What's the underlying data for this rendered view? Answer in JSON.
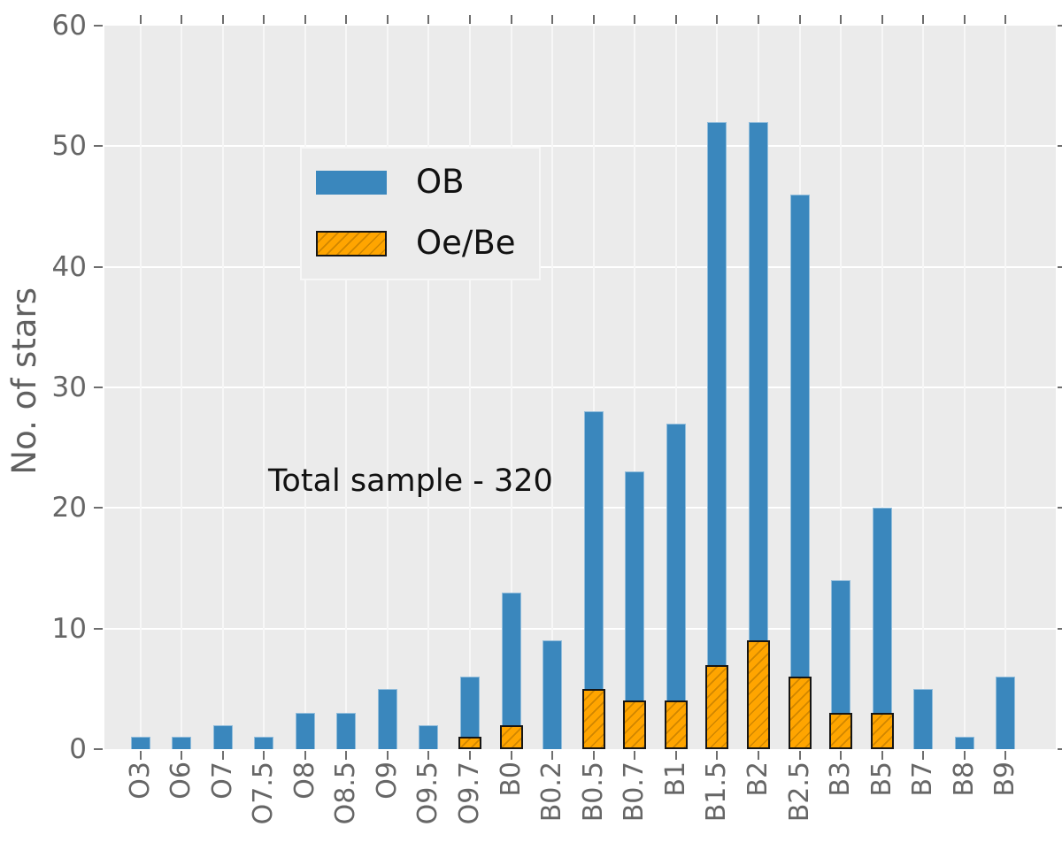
{
  "figure": {
    "ylabel": "No. of stars",
    "annotation": "Total sample - 320",
    "plot_background": "#ebebeb",
    "page_background": "#ffffff",
    "gridline_color": "#ffffff",
    "tick_label_color": "#666666",
    "axis_label_color": "#606060"
  },
  "chart_data": {
    "type": "bar",
    "title": "",
    "xlabel": "",
    "ylabel": "No. of stars",
    "ylim": [
      0,
      60
    ],
    "yticks": [
      0,
      10,
      20,
      30,
      40,
      50,
      60
    ],
    "grid": true,
    "legend_position": "upper left",
    "annotation": "Total sample - 320",
    "categories": [
      "O3",
      "O6",
      "O7",
      "O7.5",
      "O8",
      "O8.5",
      "O9",
      "O9.5",
      "O9.7",
      "B0",
      "B0.2",
      "B0.5",
      "B0.7",
      "B1",
      "B1.5",
      "B2",
      "B2.5",
      "B3",
      "B5",
      "B7",
      "B8",
      "B9"
    ],
    "series": [
      {
        "name": "OB",
        "color": "#3a87bd",
        "hatch": null,
        "values": [
          1,
          1,
          2,
          1,
          3,
          3,
          5,
          2,
          6,
          13,
          9,
          28,
          23,
          27,
          52,
          52,
          46,
          14,
          20,
          5,
          1,
          6
        ]
      },
      {
        "name": "Oe/Be",
        "color": "#ffa500",
        "hatch": "/",
        "values": [
          0,
          0,
          0,
          0,
          0,
          0,
          0,
          0,
          1,
          2,
          0,
          5,
          4,
          4,
          7,
          9,
          6,
          3,
          3,
          0,
          0,
          0
        ]
      }
    ]
  }
}
